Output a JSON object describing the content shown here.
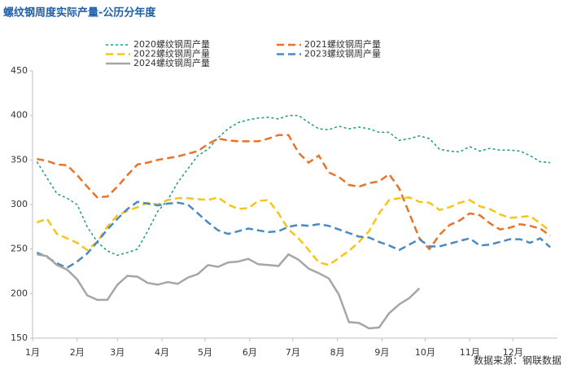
{
  "chart_data": {
    "type": "line",
    "title": "螺纹钢周度实际产量-公历分年度",
    "source": "数据来源：钢联数据",
    "x": [
      4,
      11,
      18,
      25,
      32,
      39,
      46,
      53,
      60,
      67,
      74,
      81,
      88,
      95,
      102,
      109,
      116,
      123,
      130,
      137,
      144,
      151,
      158,
      165,
      172,
      179,
      186,
      193,
      200,
      207,
      214,
      221,
      228,
      235,
      242,
      249,
      256,
      263,
      270,
      277,
      284,
      291,
      298,
      305,
      312,
      319,
      326,
      333,
      340,
      347,
      354,
      361
    ],
    "xlim": [
      1,
      366
    ],
    "xticks": [
      {
        "value": 1,
        "label": "1月"
      },
      {
        "value": 32,
        "label": "2月"
      },
      {
        "value": 60,
        "label": "3月"
      },
      {
        "value": 91,
        "label": "4月"
      },
      {
        "value": 121,
        "label": "5月"
      },
      {
        "value": 152,
        "label": "6月"
      },
      {
        "value": 182,
        "label": "7月"
      },
      {
        "value": 213,
        "label": "8月"
      },
      {
        "value": 244,
        "label": "9月"
      },
      {
        "value": 274,
        "label": "10月"
      },
      {
        "value": 305,
        "label": "11月"
      },
      {
        "value": 335,
        "label": "12月"
      }
    ],
    "ylim": [
      150,
      450
    ],
    "yticks": [
      150,
      200,
      250,
      300,
      350,
      400,
      450
    ],
    "grid": false,
    "series": [
      {
        "name": "2020螺纹钢周产量",
        "color": "#1a9a8a",
        "line_style": "dotted",
        "values": [
          348,
          330,
          312,
          307,
          300,
          275,
          258,
          248,
          243,
          246,
          250,
          270,
          292,
          305,
          325,
          340,
          355,
          362,
          375,
          385,
          392,
          395,
          397,
          398,
          396,
          400,
          400,
          392,
          385,
          384,
          388,
          385,
          387,
          385,
          381,
          381,
          372,
          374,
          377,
          374,
          362,
          360,
          359,
          365,
          360,
          363,
          361,
          361,
          360,
          355,
          348,
          347
        ]
      },
      {
        "name": "2021螺纹钢周产量",
        "color": "#e8732a",
        "line_style": "dashed",
        "values": [
          351,
          349,
          345,
          344,
          333,
          320,
          308,
          309,
          320,
          333,
          345,
          347,
          350,
          352,
          354,
          357,
          360,
          368,
          374,
          372,
          371,
          371,
          371,
          374,
          378,
          378,
          358,
          347,
          355,
          336,
          331,
          322,
          320,
          324,
          326,
          334,
          318,
          290,
          262,
          250,
          266,
          277,
          282,
          290,
          288,
          279,
          272,
          274,
          278,
          276,
          273,
          265
        ]
      },
      {
        "name": "2022螺纹钢周产量",
        "color": "#f5c518",
        "line_style": "dashed",
        "values": [
          280,
          284,
          267,
          262,
          257,
          249,
          258,
          275,
          288,
          293,
          297,
          302,
          300,
          305,
          307,
          307,
          306,
          305,
          308,
          300,
          295,
          296,
          304,
          305,
          290,
          272,
          262,
          249,
          235,
          232,
          240,
          248,
          258,
          270,
          290,
          305,
          307,
          308,
          303,
          302,
          294,
          297,
          302,
          305,
          298,
          295,
          289,
          285,
          286,
          287,
          279,
          270
        ]
      },
      {
        "name": "2023螺纹钢周产量",
        "color": "#4a8ac4",
        "line_style": "dashed",
        "values": [
          246,
          241,
          234,
          229,
          236,
          245,
          258,
          272,
          284,
          295,
          303,
          301,
          299,
          301,
          302,
          300,
          290,
          280,
          271,
          267,
          270,
          273,
          271,
          269,
          270,
          275,
          277,
          276,
          278,
          276,
          272,
          268,
          264,
          263,
          258,
          254,
          249,
          255,
          261,
          253,
          253,
          256,
          259,
          262,
          254,
          255,
          258,
          261,
          261,
          257,
          262,
          252
        ]
      },
      {
        "name": "2024螺纹钢周产量",
        "color": "#a6a6a6",
        "line_style": "solid",
        "values": [
          244,
          242,
          232,
          227,
          216,
          198,
          193,
          193,
          210,
          220,
          219,
          212,
          210,
          213,
          211,
          218,
          222,
          232,
          230,
          235,
          236,
          239,
          233,
          232,
          231,
          244,
          238,
          228,
          223,
          217,
          199,
          168,
          167,
          161,
          162,
          178,
          188,
          195,
          206,
          null,
          null,
          null,
          null,
          null,
          null,
          null,
          null,
          null,
          null,
          null,
          null,
          null
        ]
      }
    ]
  }
}
